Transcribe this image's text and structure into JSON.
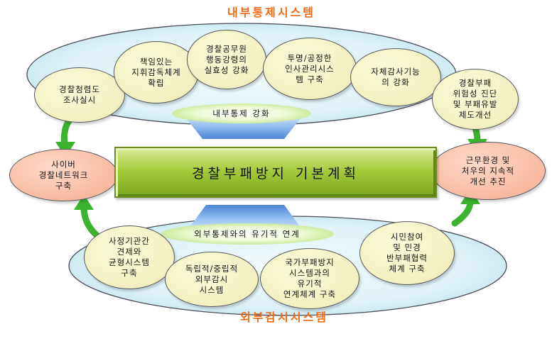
{
  "internal_system": {
    "title": "내부통제시스템",
    "band_label": "내부통제 강화",
    "items": [
      "경찰청렴도\n조사실시",
      "책임있는\n지휘감독체계\n확립",
      "경찰공무원\n행동강령의\n실효성 강화",
      "투명/공정한\n인사관리시스\n템 구축",
      "자체감사기능\n의 강화",
      "경찰부패\n위험성 진단\n및 부패유발\n제도개선"
    ]
  },
  "main_plan": {
    "title": "경찰부패방지 기본계획"
  },
  "side_left": {
    "text": "사이버\n경찰네트워크\n구축"
  },
  "side_right": {
    "text": "근무환경 및\n처우의 지속적\n개선 추진"
  },
  "external_system": {
    "title": "외부감시시스템",
    "band_label": "외부통제와의 유기적 연계",
    "items": [
      "사정기관간\n견제와\n균형시스템\n구축",
      "독립적/중립적\n외부감시\n시스템",
      "국가부패방지\n시스템과의\n유기적\n연계체계 구축",
      "시민참여\n및 민경\n반부패협력\n체계 구축"
    ]
  },
  "colors": {
    "title": "#f06a16",
    "platter": "#d6eef6",
    "arrow_blue": "#5b95dd",
    "arrow_green": "#3cb32e",
    "main_box": "#a6cc3c",
    "node_yellow": "#f2f0c0",
    "node_salmon": "#f7b89e"
  }
}
